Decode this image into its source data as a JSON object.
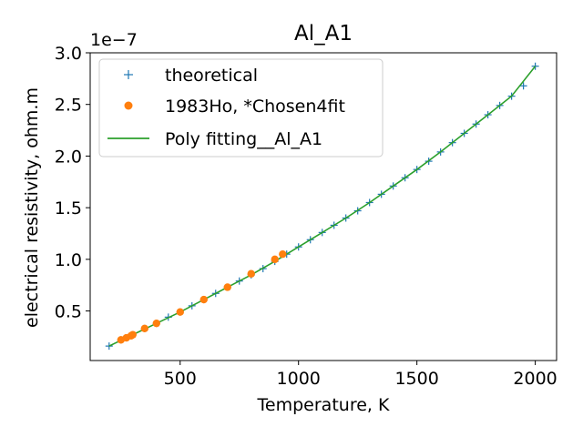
{
  "chart_data": {
    "type": "scatter",
    "title": "Al_A1",
    "xlabel": "Temperature, K",
    "ylabel": "electrical resistivity, ohm.m",
    "y_offset_text": "1e−7",
    "xlim": [
      120,
      2090
    ],
    "ylim": [
      0.02,
      3.0
    ],
    "y_multiplier": 1e-07,
    "x_ticks": [
      500,
      1000,
      1500,
      2000
    ],
    "x_tick_labels": [
      "500",
      "1000",
      "1500",
      "2000"
    ],
    "y_ticks": [
      0.5,
      1.0,
      1.5,
      2.0,
      2.5,
      3.0
    ],
    "y_tick_labels": [
      "0.5",
      "1.0",
      "1.5",
      "2.0",
      "2.5",
      "3.0"
    ],
    "grid": false,
    "legend_position": "upper-left",
    "series": [
      {
        "name": "theoretical",
        "kind": "marker-plus",
        "color": "#1f77b4",
        "x": [
          200,
          250,
          300,
          350,
          400,
          450,
          500,
          550,
          600,
          650,
          700,
          750,
          800,
          850,
          900,
          950,
          1000,
          1050,
          1100,
          1150,
          1200,
          1250,
          1300,
          1350,
          1400,
          1450,
          1500,
          1550,
          1600,
          1650,
          1700,
          1750,
          1800,
          1850,
          1900,
          1950,
          2000
        ],
        "y": [
          0.16,
          0.22,
          0.27,
          0.33,
          0.38,
          0.44,
          0.49,
          0.55,
          0.61,
          0.67,
          0.73,
          0.79,
          0.85,
          0.91,
          0.98,
          1.05,
          1.12,
          1.19,
          1.26,
          1.33,
          1.4,
          1.47,
          1.55,
          1.63,
          1.71,
          1.79,
          1.87,
          1.95,
          2.04,
          2.13,
          2.22,
          2.31,
          2.4,
          2.49,
          2.58,
          2.68,
          2.87
        ]
      },
      {
        "name": "1983Ho, *Chosen4fit",
        "kind": "marker-dot",
        "color": "#ff7f0e",
        "x": [
          250,
          273,
          293,
          300,
          350,
          400,
          500,
          600,
          700,
          800,
          900,
          933
        ],
        "y": [
          0.22,
          0.24,
          0.26,
          0.27,
          0.33,
          0.38,
          0.49,
          0.61,
          0.73,
          0.86,
          1.0,
          1.05
        ]
      },
      {
        "name": "Poly fitting__Al_A1",
        "kind": "line",
        "color": "#2ca02c",
        "x": [
          200,
          300,
          400,
          500,
          600,
          700,
          800,
          900,
          1000,
          1100,
          1200,
          1300,
          1400,
          1500,
          1600,
          1700,
          1800,
          1900,
          2000
        ],
        "y": [
          0.16,
          0.27,
          0.38,
          0.49,
          0.61,
          0.73,
          0.85,
          0.98,
          1.12,
          1.26,
          1.4,
          1.55,
          1.71,
          1.87,
          2.04,
          2.22,
          2.4,
          2.58,
          2.87
        ]
      }
    ]
  }
}
